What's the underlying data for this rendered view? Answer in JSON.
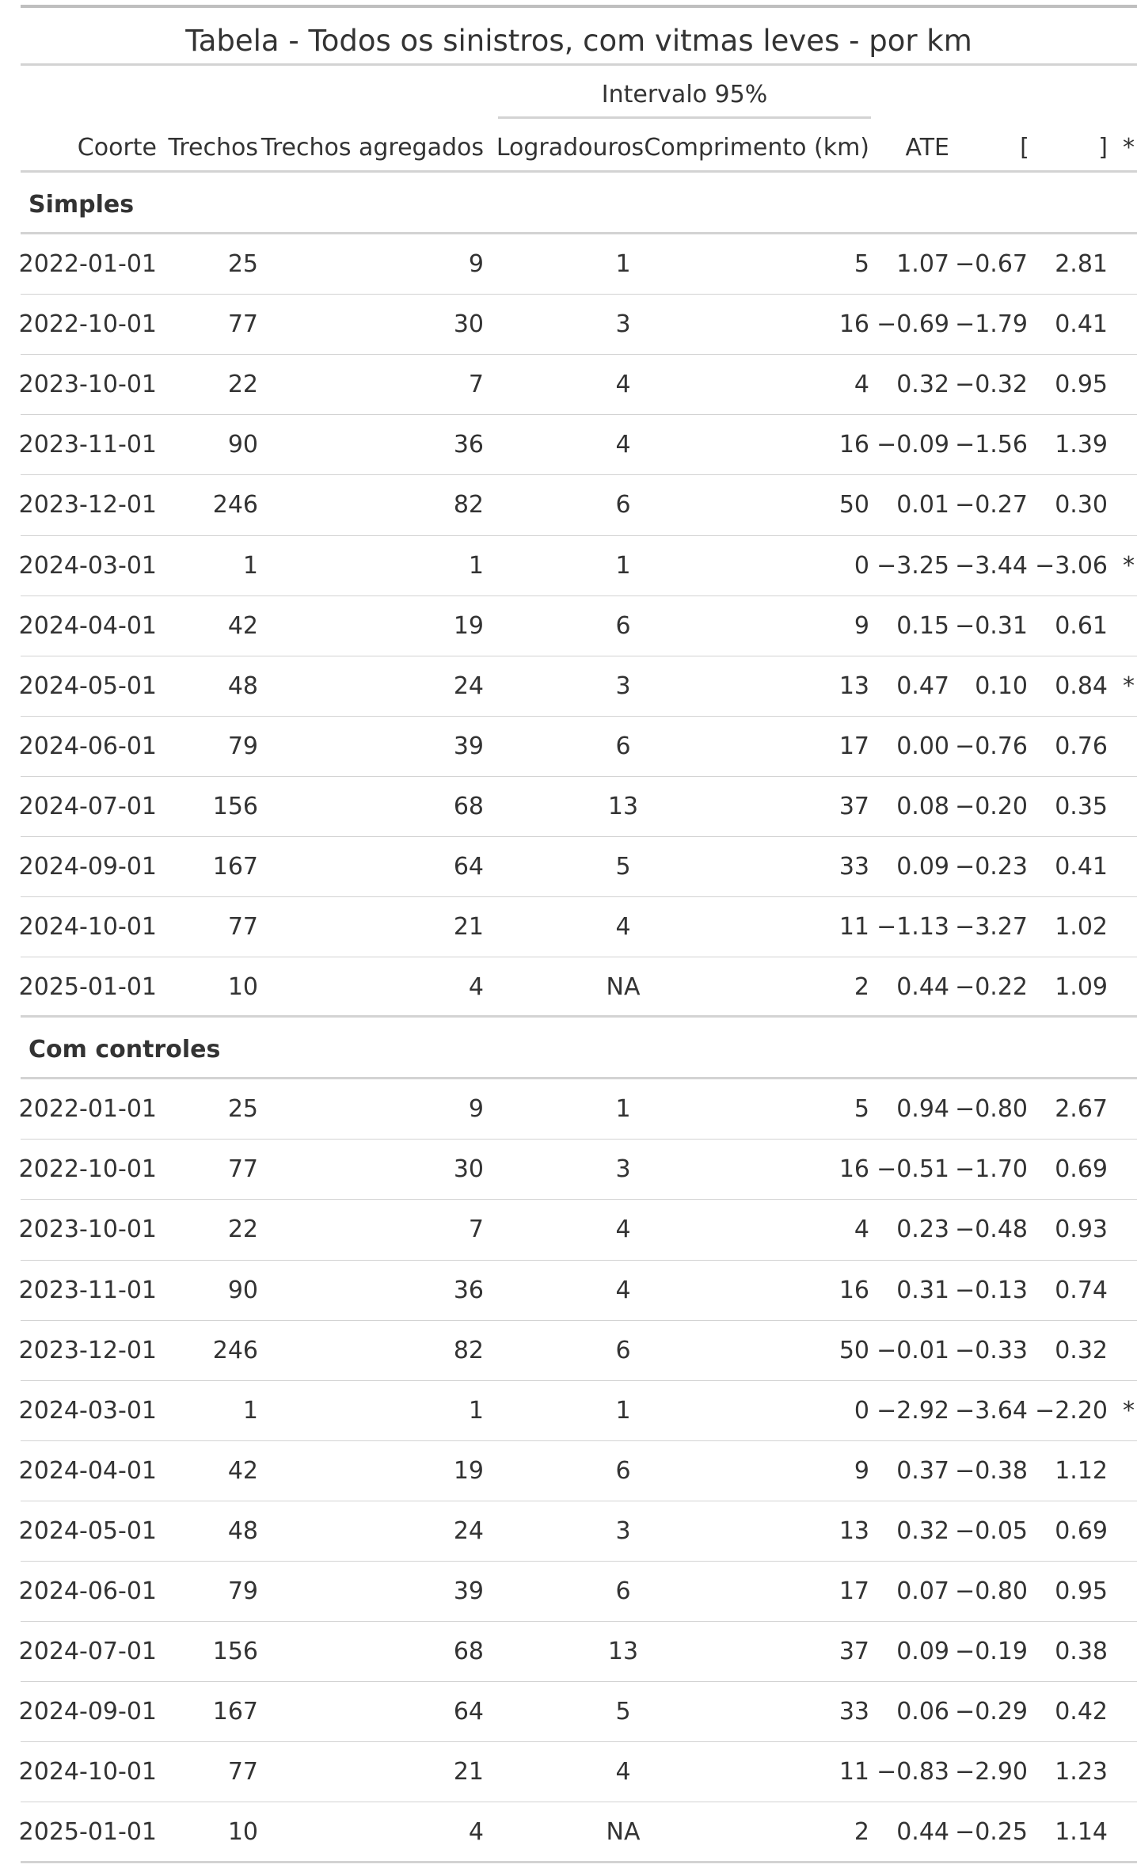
{
  "table": {
    "title": "Tabela - Todos os sinistros, com vitmas leves - por km",
    "spanner": "Intervalo 95%",
    "columns": [
      "Coorte",
      "Trechos",
      "Trechos agregados",
      "Logradouros",
      "Comprimento (km)",
      "ATE",
      "[",
      "]",
      "*"
    ],
    "groups": [
      {
        "label": "Simples",
        "rows": [
          [
            "2022-01-01",
            "25",
            "9",
            "1",
            "5",
            "1.07",
            "−0.67",
            "2.81",
            ""
          ],
          [
            "2022-10-01",
            "77",
            "30",
            "3",
            "16",
            "−0.69",
            "−1.79",
            "0.41",
            ""
          ],
          [
            "2023-10-01",
            "22",
            "7",
            "4",
            "4",
            "0.32",
            "−0.32",
            "0.95",
            ""
          ],
          [
            "2023-11-01",
            "90",
            "36",
            "4",
            "16",
            "−0.09",
            "−1.56",
            "1.39",
            ""
          ],
          [
            "2023-12-01",
            "246",
            "82",
            "6",
            "50",
            "0.01",
            "−0.27",
            "0.30",
            ""
          ],
          [
            "2024-03-01",
            "1",
            "1",
            "1",
            "0",
            "−3.25",
            "−3.44",
            "−3.06",
            "*"
          ],
          [
            "2024-04-01",
            "42",
            "19",
            "6",
            "9",
            "0.15",
            "−0.31",
            "0.61",
            ""
          ],
          [
            "2024-05-01",
            "48",
            "24",
            "3",
            "13",
            "0.47",
            "0.10",
            "0.84",
            "*"
          ],
          [
            "2024-06-01",
            "79",
            "39",
            "6",
            "17",
            "0.00",
            "−0.76",
            "0.76",
            ""
          ],
          [
            "2024-07-01",
            "156",
            "68",
            "13",
            "37",
            "0.08",
            "−0.20",
            "0.35",
            ""
          ],
          [
            "2024-09-01",
            "167",
            "64",
            "5",
            "33",
            "0.09",
            "−0.23",
            "0.41",
            ""
          ],
          [
            "2024-10-01",
            "77",
            "21",
            "4",
            "11",
            "−1.13",
            "−3.27",
            "1.02",
            ""
          ],
          [
            "2025-01-01",
            "10",
            "4",
            "NA",
            "2",
            "0.44",
            "−0.22",
            "1.09",
            ""
          ]
        ]
      },
      {
        "label": "Com controles",
        "rows": [
          [
            "2022-01-01",
            "25",
            "9",
            "1",
            "5",
            "0.94",
            "−0.80",
            "2.67",
            ""
          ],
          [
            "2022-10-01",
            "77",
            "30",
            "3",
            "16",
            "−0.51",
            "−1.70",
            "0.69",
            ""
          ],
          [
            "2023-10-01",
            "22",
            "7",
            "4",
            "4",
            "0.23",
            "−0.48",
            "0.93",
            ""
          ],
          [
            "2023-11-01",
            "90",
            "36",
            "4",
            "16",
            "0.31",
            "−0.13",
            "0.74",
            ""
          ],
          [
            "2023-12-01",
            "246",
            "82",
            "6",
            "50",
            "−0.01",
            "−0.33",
            "0.32",
            ""
          ],
          [
            "2024-03-01",
            "1",
            "1",
            "1",
            "0",
            "−2.92",
            "−3.64",
            "−2.20",
            "*"
          ],
          [
            "2024-04-01",
            "42",
            "19",
            "6",
            "9",
            "0.37",
            "−0.38",
            "1.12",
            ""
          ],
          [
            "2024-05-01",
            "48",
            "24",
            "3",
            "13",
            "0.32",
            "−0.05",
            "0.69",
            ""
          ],
          [
            "2024-06-01",
            "79",
            "39",
            "6",
            "17",
            "0.07",
            "−0.80",
            "0.95",
            ""
          ],
          [
            "2024-07-01",
            "156",
            "68",
            "13",
            "37",
            "0.09",
            "−0.19",
            "0.38",
            ""
          ],
          [
            "2024-09-01",
            "167",
            "64",
            "5",
            "33",
            "0.06",
            "−0.29",
            "0.42",
            ""
          ],
          [
            "2024-10-01",
            "77",
            "21",
            "4",
            "11",
            "−0.83",
            "−2.90",
            "1.23",
            ""
          ],
          [
            "2025-01-01",
            "10",
            "4",
            "NA",
            "2",
            "0.44",
            "−0.25",
            "1.14",
            ""
          ]
        ]
      }
    ]
  }
}
